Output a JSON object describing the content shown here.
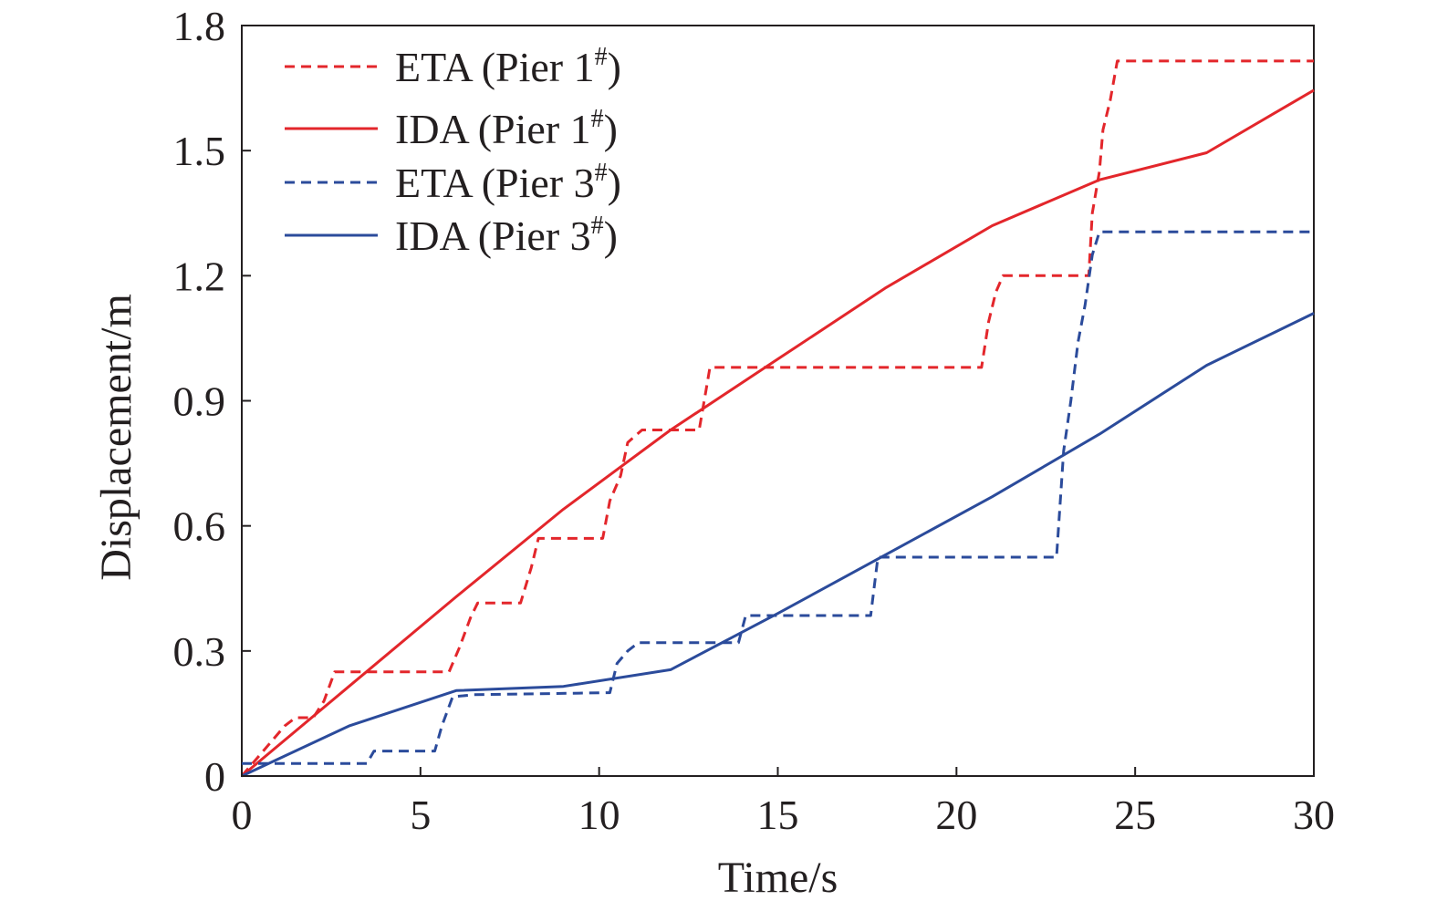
{
  "chart_data": {
    "type": "line",
    "xlabel": "Time/s",
    "ylabel": "Displacement/m",
    "xlim": [
      0,
      30
    ],
    "ylim": [
      0,
      1.8
    ],
    "x_ticks": [
      0,
      5,
      10,
      15,
      20,
      25,
      30
    ],
    "x_tick_labels": [
      "0",
      "5",
      "10",
      "15",
      "20",
      "25",
      "30"
    ],
    "y_ticks": [
      0,
      0.3,
      0.6,
      0.9,
      1.2,
      1.5,
      1.8
    ],
    "y_tick_labels": [
      "0",
      "0.3",
      "0.6",
      "0.9",
      "1.2",
      "1.5",
      "1.8"
    ],
    "grid": false,
    "legend_position": "top-left",
    "series": [
      {
        "name": "ETA (Pier 1",
        "name_sup": "#",
        "name_end": ")",
        "color": "#e3262b",
        "dash": true,
        "x": [
          0,
          0.6,
          1.2,
          1.5,
          2.0,
          2.3,
          2.6,
          3.0,
          5.8,
          6.1,
          6.4,
          6.6,
          7.8,
          8.1,
          8.3,
          10.1,
          10.3,
          10.6,
          10.8,
          11.2,
          12.8,
          13.0,
          13.1,
          20.7,
          20.9,
          21.1,
          21.3,
          23.7,
          23.8,
          24.0,
          24.1,
          24.3,
          24.5,
          30
        ],
        "y": [
          0,
          0.06,
          0.12,
          0.14,
          0.14,
          0.18,
          0.25,
          0.25,
          0.25,
          0.31,
          0.38,
          0.415,
          0.415,
          0.5,
          0.57,
          0.57,
          0.66,
          0.72,
          0.8,
          0.83,
          0.83,
          0.93,
          0.98,
          0.98,
          1.09,
          1.16,
          1.2,
          1.2,
          1.35,
          1.45,
          1.55,
          1.62,
          1.715,
          1.715
        ]
      },
      {
        "name": "IDA (Pier 1",
        "name_sup": "#",
        "name_end": ")",
        "color": "#e3262b",
        "dash": false,
        "x": [
          0,
          3,
          6,
          9,
          12,
          15,
          18,
          21,
          24,
          27,
          30
        ],
        "y": [
          0,
          0.215,
          0.43,
          0.64,
          0.83,
          1.0,
          1.17,
          1.32,
          1.43,
          1.495,
          1.645
        ]
      },
      {
        "name": "ETA (Pier 3",
        "name_sup": "#",
        "name_end": ")",
        "color": "#2b4b9b",
        "dash": true,
        "x": [
          0,
          3.5,
          3.7,
          5.4,
          5.6,
          5.9,
          6.5,
          10.3,
          10.5,
          10.8,
          11.1,
          13.9,
          14.1,
          17.6,
          17.8,
          22.8,
          23.0,
          23.2,
          23.4,
          23.6,
          23.8,
          24.0,
          30
        ],
        "y": [
          0.03,
          0.03,
          0.06,
          0.06,
          0.12,
          0.19,
          0.195,
          0.2,
          0.27,
          0.3,
          0.32,
          0.32,
          0.385,
          0.385,
          0.525,
          0.525,
          0.78,
          0.9,
          1.04,
          1.13,
          1.25,
          1.305,
          1.305
        ]
      },
      {
        "name": "IDA (Pier 3",
        "name_sup": "#",
        "name_end": ")",
        "color": "#2b4b9b",
        "dash": false,
        "x": [
          0,
          3,
          6,
          9,
          12,
          15,
          18,
          21,
          24,
          27,
          30
        ],
        "y": [
          0,
          0.12,
          0.205,
          0.215,
          0.255,
          0.39,
          0.53,
          0.67,
          0.82,
          0.985,
          1.11
        ]
      }
    ]
  }
}
